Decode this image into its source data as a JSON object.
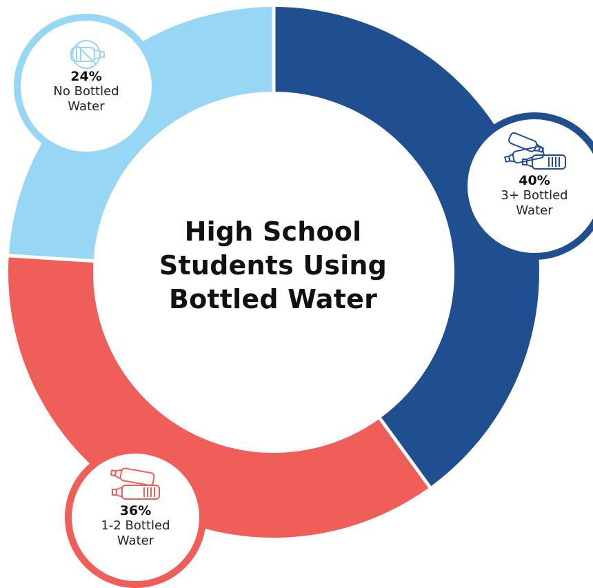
{
  "title_lines": [
    "High School",
    "Students Using",
    "Bottled Water"
  ],
  "colors": {
    "three_plus": "#1f4f8f",
    "one_two": "#f05e59",
    "none": "#97d6f4",
    "separator": "#ffffff"
  },
  "chart_data": {
    "type": "pie",
    "title": "High School Students Using Bottled Water",
    "slices": [
      {
        "label": "3+ Bottled Water",
        "value": 40,
        "color": "#1f4f8f",
        "icon": "multiple-bottles-icon"
      },
      {
        "label": "1-2 Bottled Water",
        "value": 36,
        "color": "#f05e59",
        "icon": "two-bottles-icon"
      },
      {
        "label": "No Bottled Water",
        "value": 24,
        "color": "#97d6f4",
        "icon": "no-bottle-icon"
      }
    ]
  },
  "labels": {
    "three_plus": {
      "pct": "40%",
      "line1": "3+ Bottled",
      "line2": "Water",
      "icon": "multiple-bottles-icon"
    },
    "one_two": {
      "pct": "36%",
      "line1": "1-2 Bottled",
      "line2": "Water",
      "icon": "two-bottles-icon"
    },
    "none": {
      "pct": "24%",
      "line1": "No Bottled",
      "line2": "Water",
      "icon": "no-bottle-icon"
    }
  }
}
